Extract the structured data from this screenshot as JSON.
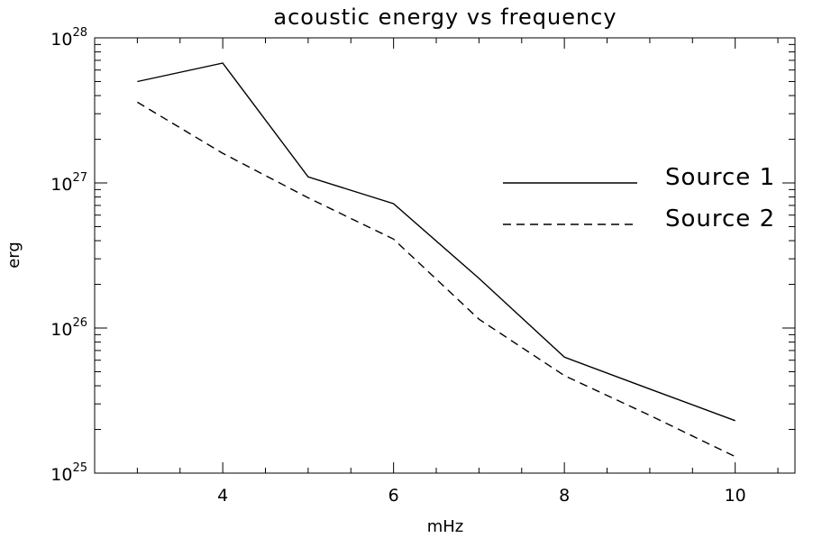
{
  "chart_data": {
    "type": "line",
    "title": "acoustic energy vs frequency",
    "xlabel": "mHz",
    "ylabel": "erg",
    "xlim": [
      2.5,
      10.7
    ],
    "ylim": [
      1e+25,
      1e+28
    ],
    "yscale": "log",
    "x_ticks": [
      4,
      6,
      8,
      10
    ],
    "x_tick_labels": [
      "4",
      "6",
      "8",
      "10"
    ],
    "y_ticks": [
      1e+25,
      1e+26,
      1e+27,
      1e+28
    ],
    "y_tick_labels": [
      {
        "base": "10",
        "exp": "25"
      },
      {
        "base": "10",
        "exp": "26"
      },
      {
        "base": "10",
        "exp": "27"
      },
      {
        "base": "10",
        "exp": "28"
      }
    ],
    "grid": false,
    "legend_position": "right",
    "color": "#000000",
    "series": [
      {
        "name": "Source 1",
        "style": "solid",
        "x": [
          3,
          4,
          5,
          6,
          7,
          8,
          9,
          10
        ],
        "y": [
          5e+27,
          6.7e+27,
          1.1e+27,
          7.2e+26,
          2.2e+26,
          6.3e+25,
          3.8e+25,
          2.3e+25
        ]
      },
      {
        "name": "Source 2",
        "style": "dashed",
        "x": [
          3,
          4,
          5,
          6,
          7,
          8,
          9,
          10
        ],
        "y": [
          3.6e+27,
          1.6e+27,
          7.9e+26,
          4.1e+26,
          1.15e+26,
          4.7e+25,
          2.5e+25,
          1.3e+25
        ]
      }
    ]
  }
}
